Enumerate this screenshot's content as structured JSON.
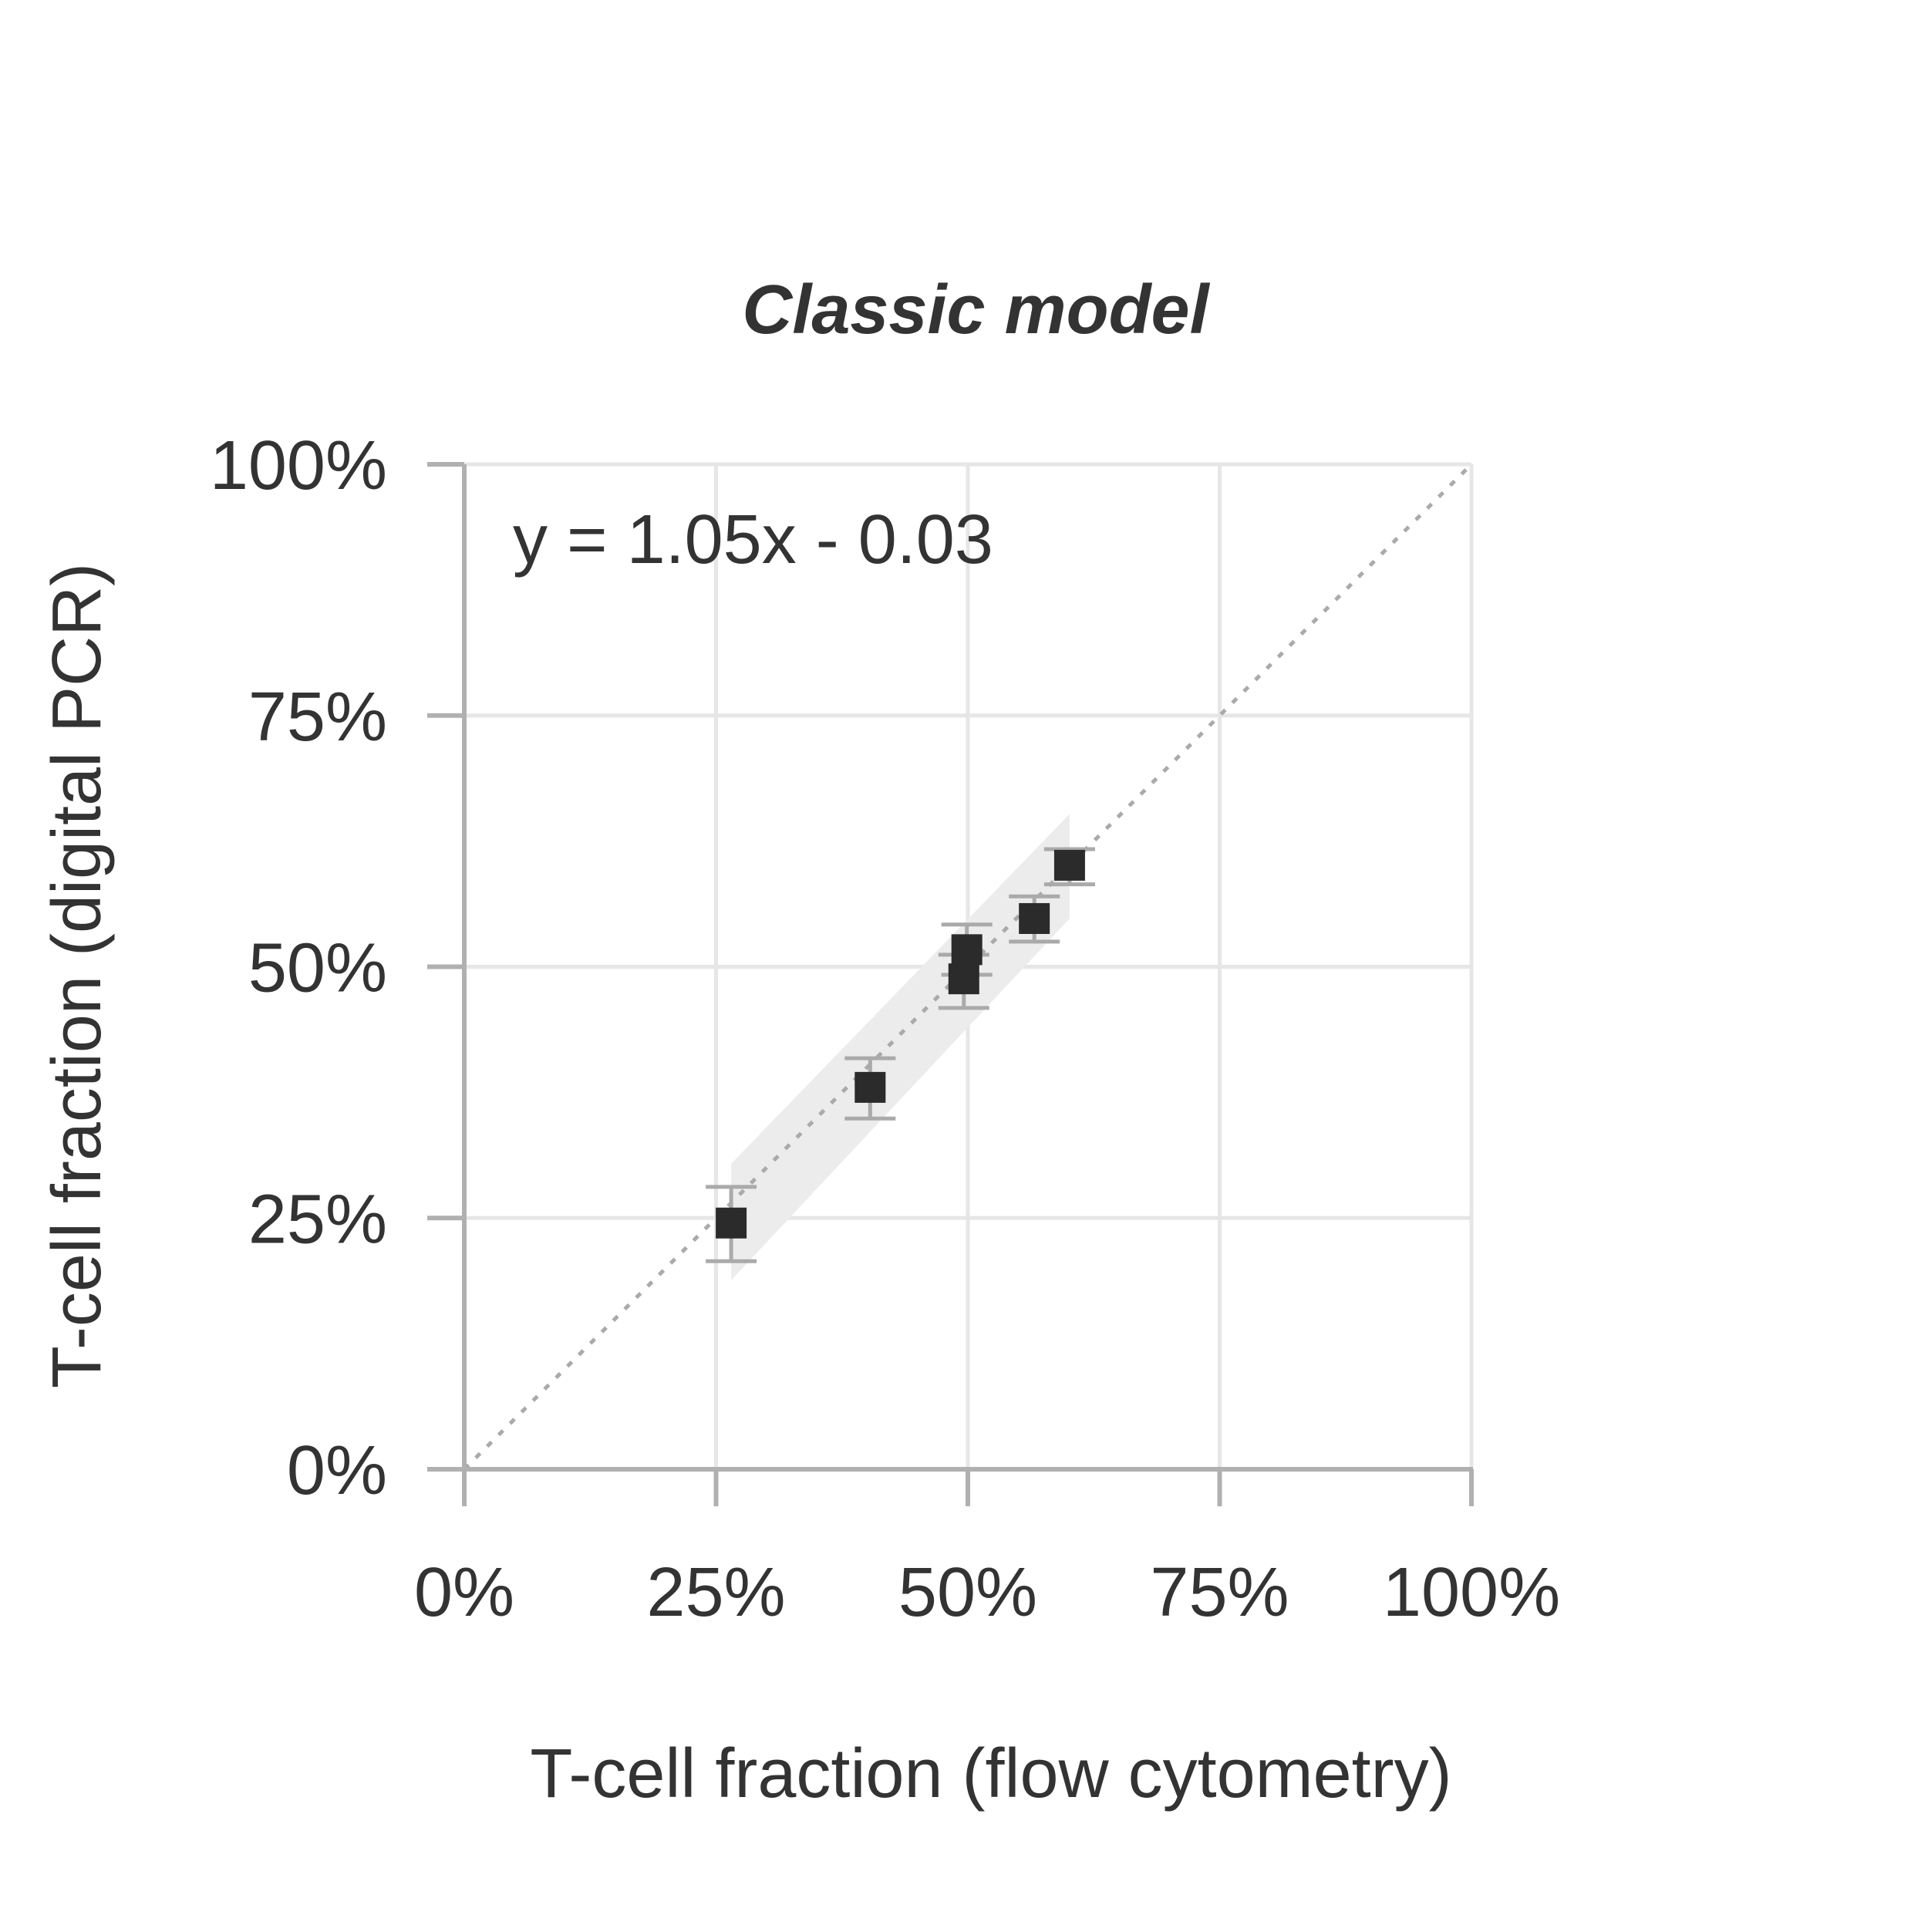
{
  "chart_data": {
    "type": "scatter",
    "title": "Classic model",
    "xlabel": "T-cell fraction (flow cytometry)",
    "ylabel": "T-cell fraction (digital PCR)",
    "xlim": [
      0,
      1
    ],
    "ylim": [
      0,
      1
    ],
    "x_ticks": [
      0,
      0.25,
      0.5,
      0.75,
      1.0
    ],
    "y_ticks": [
      0,
      0.25,
      0.5,
      0.75,
      1.0
    ],
    "x_tick_labels": [
      "0%",
      "25%",
      "50%",
      "75%",
      "100%"
    ],
    "y_tick_labels": [
      "0%",
      "25%",
      "50%",
      "75%",
      "100%"
    ],
    "grid": true,
    "annotation": "y = 1.05x - 0.03",
    "points": [
      {
        "x": 0.265,
        "y": 0.245,
        "y_low": 0.207,
        "y_high": 0.281
      },
      {
        "x": 0.403,
        "y": 0.38,
        "y_low": 0.349,
        "y_high": 0.409
      },
      {
        "x": 0.496,
        "y": 0.488,
        "y_low": 0.459,
        "y_high": 0.512
      },
      {
        "x": 0.499,
        "y": 0.517,
        "y_low": 0.492,
        "y_high": 0.542
      },
      {
        "x": 0.566,
        "y": 0.548,
        "y_low": 0.525,
        "y_high": 0.57
      },
      {
        "x": 0.601,
        "y": 0.601,
        "y_low": 0.582,
        "y_high": 0.617
      }
    ],
    "identity_line": {
      "from": [
        0,
        0
      ],
      "to": [
        1,
        1
      ],
      "style": "dotted"
    },
    "confidence_band": {
      "x": [
        0.265,
        0.601
      ],
      "lower": [
        0.188,
        0.548
      ],
      "upper": [
        0.304,
        0.652
      ]
    },
    "colors": {
      "points": "#2b2b2b",
      "error_bars": "#aaaaaa",
      "grid": "#e6e6e6",
      "axis": "#b0b0b0",
      "band": "#ececec",
      "identity": "#aaaaaa",
      "text": "#333333"
    }
  }
}
